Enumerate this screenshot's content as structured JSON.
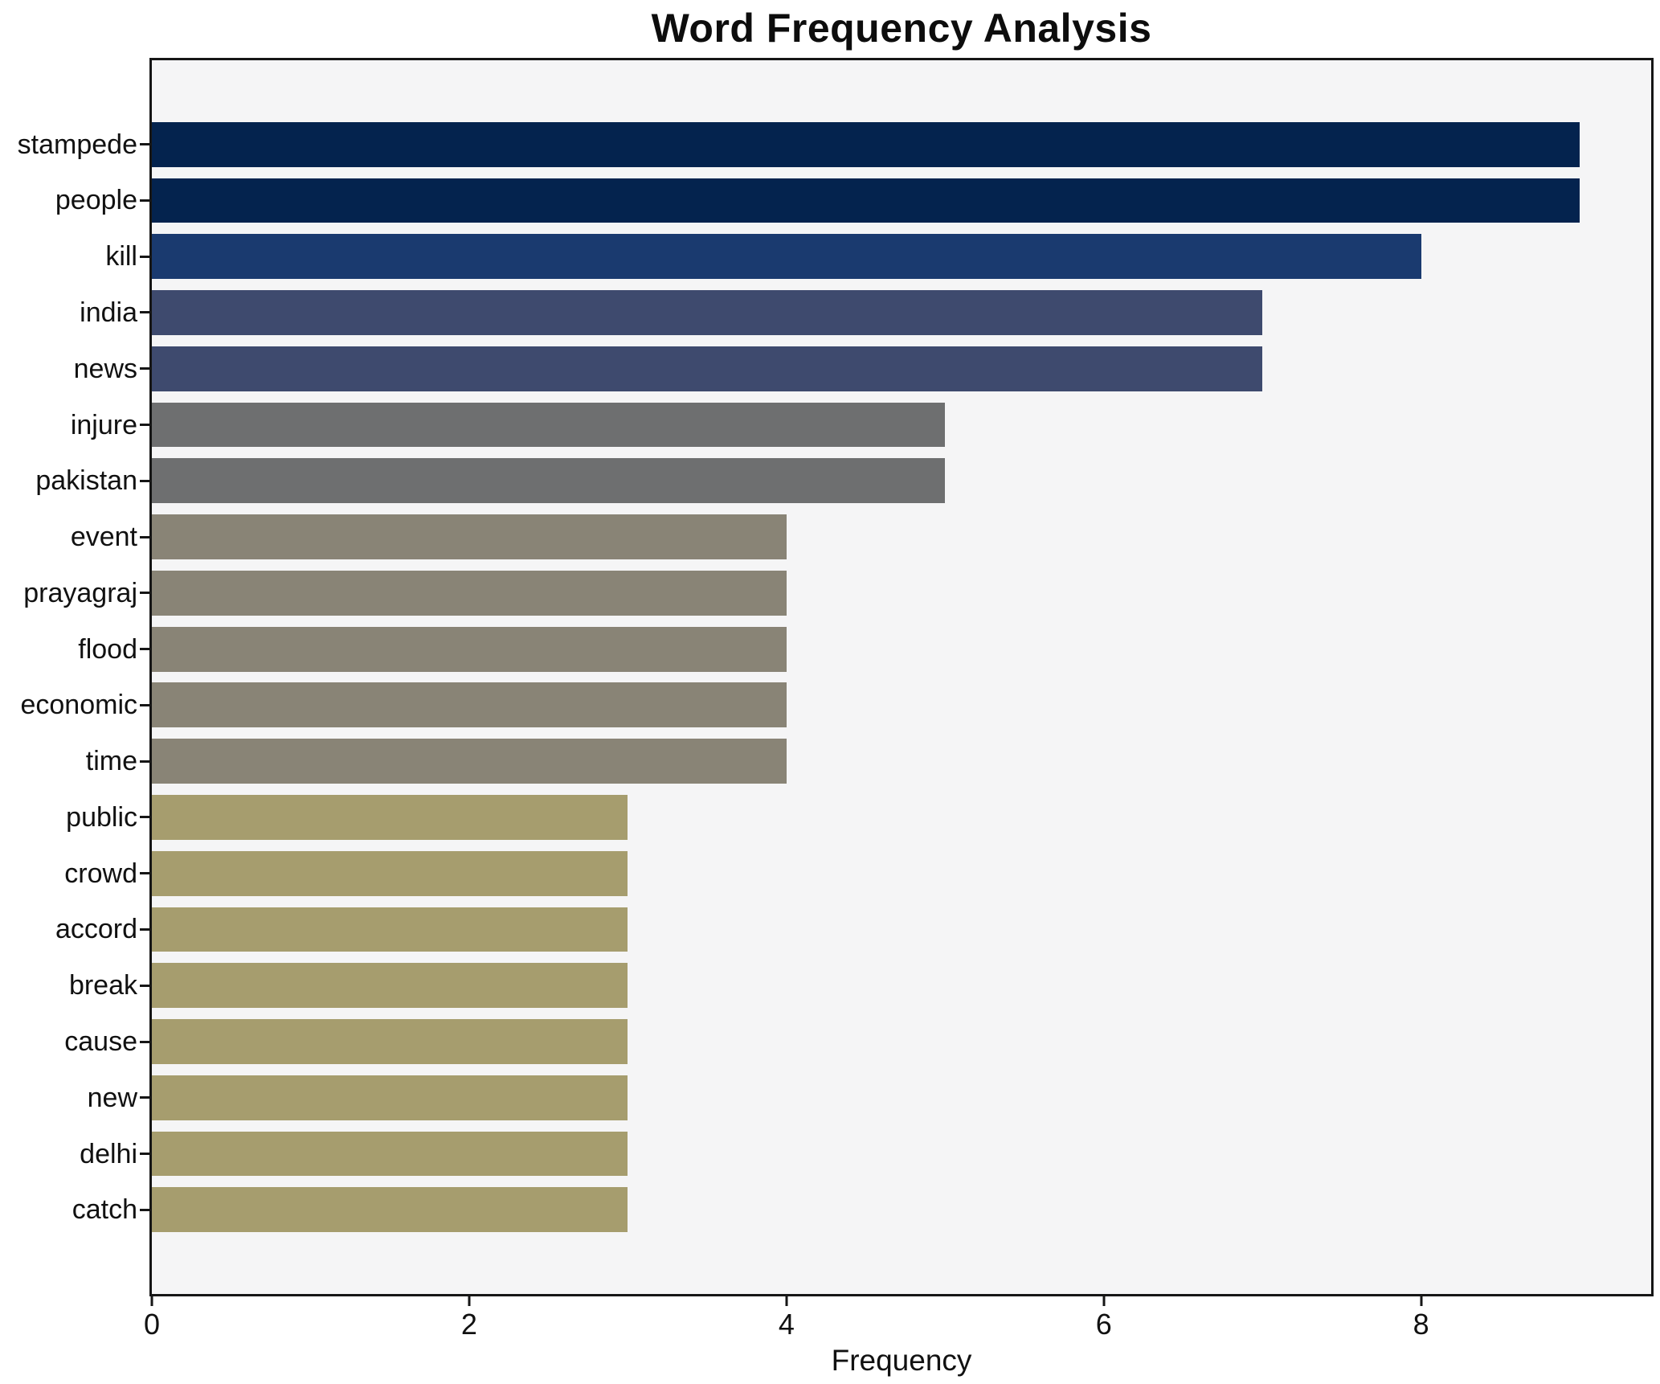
{
  "title": "Word Frequency Analysis",
  "xlabel": "Frequency",
  "chart_data": {
    "type": "bar",
    "orientation": "horizontal",
    "title": "Word Frequency Analysis",
    "xlabel": "Frequency",
    "ylabel": "",
    "grid": false,
    "legend_position": "none",
    "xlim": [
      0,
      9.45
    ],
    "xticks": [
      0,
      2,
      4,
      6,
      8
    ],
    "categories": [
      "stampede",
      "people",
      "kill",
      "india",
      "news",
      "injure",
      "pakistan",
      "event",
      "prayagraj",
      "flood",
      "economic",
      "time",
      "public",
      "crowd",
      "accord",
      "break",
      "cause",
      "new",
      "delhi",
      "catch"
    ],
    "values": [
      9,
      9,
      8,
      7,
      7,
      5,
      5,
      4,
      4,
      4,
      4,
      4,
      3,
      3,
      3,
      3,
      3,
      3,
      3,
      3
    ],
    "bar_colors": [
      "#04234e",
      "#04234e",
      "#1a3a6f",
      "#3e4a6e",
      "#3e4a6e",
      "#6e6f70",
      "#6e6f70",
      "#898476",
      "#898476",
      "#898476",
      "#898476",
      "#898476",
      "#a69d6e",
      "#a69d6e",
      "#a69d6e",
      "#a69d6e",
      "#a69d6e",
      "#a69d6e",
      "#a69d6e",
      "#a69d6e"
    ],
    "bar_height_fraction": 0.8,
    "plot_background": "#f5f5f6",
    "figure_background": "#ffffff",
    "spine_color": "#161616",
    "text_color": "#111111"
  }
}
